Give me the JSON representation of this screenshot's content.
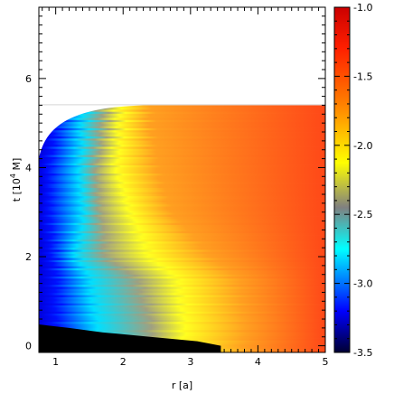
{
  "chart_data": {
    "type": "heatmap",
    "title": "",
    "xlabel": "r [a]",
    "ylabel_parts": {
      "prefix": "t [10",
      "exponent": "4",
      "suffix": " M]"
    },
    "xlim": [
      0.75,
      5.0
    ],
    "ylim": [
      -0.15,
      7.6
    ],
    "x_ticks": [
      1,
      2,
      3,
      4,
      5
    ],
    "x_tick_labels": [
      "1",
      "2",
      "3",
      "4",
      "5"
    ],
    "y_ticks": [
      0,
      2,
      4,
      6
    ],
    "y_tick_labels": [
      "0",
      "2",
      "4",
      "6"
    ],
    "simulation_end_t": 5.4,
    "excised_region_boundary": [
      {
        "t": 0.0,
        "r": 3.45
      },
      {
        "t": 0.1,
        "r": 3.1
      },
      {
        "t": 0.2,
        "r": 2.4
      },
      {
        "t": 0.3,
        "r": 1.7
      },
      {
        "t": 0.4,
        "r": 1.2
      },
      {
        "t": 0.45,
        "r": 0.9
      },
      {
        "t": 0.48,
        "r": 0.75
      }
    ],
    "contour_bands_r": [
      {
        "t": 0.6,
        "blue": 1.0,
        "cyan": 1.6,
        "gray": 2.4,
        "yellow": 2.9,
        "orange": 3.8
      },
      {
        "t": 1.5,
        "blue": 1.0,
        "cyan": 1.5,
        "gray": 2.2,
        "yellow": 2.8,
        "orange": 3.7
      },
      {
        "t": 2.0,
        "blue": 0.95,
        "cyan": 1.3,
        "gray": 1.75,
        "yellow": 2.4,
        "orange": 3.3
      },
      {
        "t": 3.0,
        "blue": 0.9,
        "cyan": 1.4,
        "gray": 1.65,
        "yellow": 2.1,
        "orange": 2.7
      },
      {
        "t": 4.0,
        "blue": 0.9,
        "cyan": 1.35,
        "gray": 1.6,
        "yellow": 1.9,
        "orange": 2.5
      },
      {
        "t": 5.0,
        "blue": 1.0,
        "cyan": 1.4,
        "gray": 1.7,
        "yellow": 1.95,
        "orange": 2.4
      }
    ],
    "colorbar": {
      "min": -3.5,
      "max": -1.0,
      "ticks": [
        -1.0,
        -1.5,
        -2.0,
        -2.5,
        -3.0,
        -3.5
      ],
      "tick_labels": [
        "-1.0",
        "-1.5",
        "-2.0",
        "-2.5",
        "-3.0",
        "-3.5"
      ],
      "colors": [
        "#000033",
        "#0000ff",
        "#00ffff",
        "#808080",
        "#ffff00",
        "#ff8000",
        "#ff2000",
        "#cc0000"
      ]
    }
  }
}
